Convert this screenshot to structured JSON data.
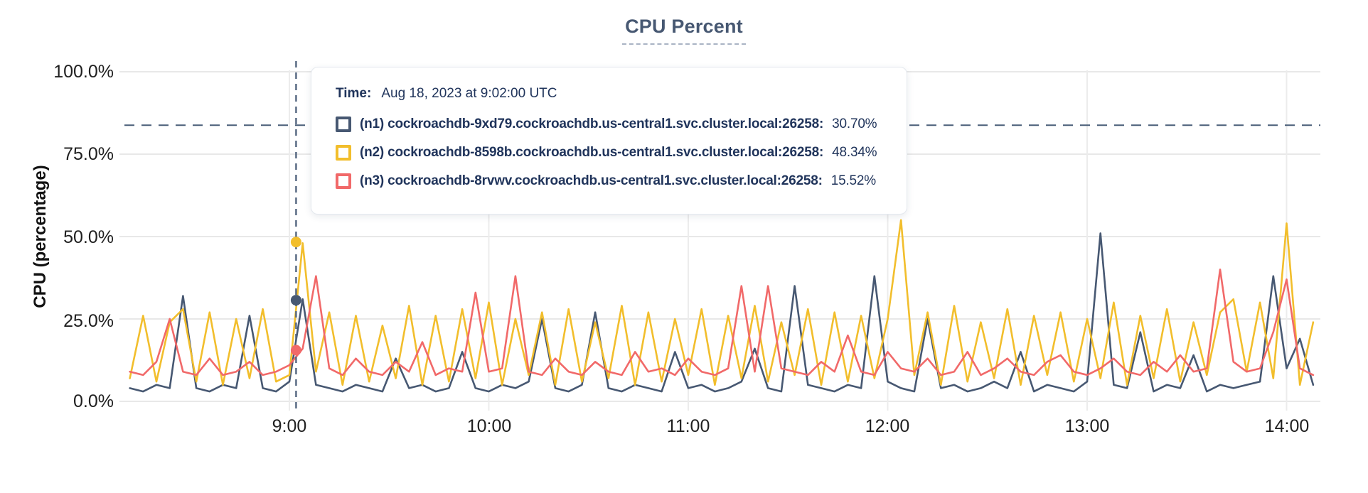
{
  "title": "CPU Percent",
  "tooltip": {
    "time_label": "Time:",
    "time_value": "Aug 18, 2023 at 9:02:00 UTC",
    "entries": [
      {
        "name": "(n1) cockroachdb-9xd79.cockroachdb.us-central1.svc.cluster.local:26258:",
        "value": "30.70%",
        "color": "#475872"
      },
      {
        "name": "(n2) cockroachdb-8598b.cockroachdb.us-central1.svc.cluster.local:26258:",
        "value": "48.34%",
        "color": "#F2BE2C"
      },
      {
        "name": "(n3) cockroachdb-8rvwv.cockroachdb.us-central1.svc.cluster.local:26258:",
        "value": "15.52%",
        "color": "#F16969"
      }
    ]
  },
  "chart_data": {
    "type": "line",
    "title": "CPU Percent",
    "xlabel": "",
    "ylabel": "CPU (percentage)",
    "ylim": [
      0,
      100
    ],
    "grid": true,
    "legend_position": "tooltip-overlay",
    "yticks": [
      {
        "label": "100.0%",
        "value": 100
      },
      {
        "label": "75.0%",
        "value": 75
      },
      {
        "label": "50.0%",
        "value": 50
      },
      {
        "label": "25.0%",
        "value": 25
      },
      {
        "label": "0.0%",
        "value": 0
      }
    ],
    "xticks": [
      {
        "label": "9:00",
        "minute": 540
      },
      {
        "label": "10:00",
        "minute": 600
      },
      {
        "label": "11:00",
        "minute": 660
      },
      {
        "label": "12:00",
        "minute": 720
      },
      {
        "label": "13:00",
        "minute": 780
      },
      {
        "label": "14:00",
        "minute": 840
      }
    ],
    "x_range_minutes": [
      490,
      850
    ],
    "x_start_minute": 492,
    "x_step_minutes": 4,
    "threshold_percent": 83.8,
    "hover": {
      "minute": 542,
      "time": "Aug 18, 2023 at 9:02:00 UTC",
      "values": [
        30.7,
        48.34,
        15.52
      ]
    },
    "series": [
      {
        "name": "(n1) cockroachdb-9xd79.cockroachdb.us-central1.svc.cluster.local:26258",
        "color": "#475872",
        "values": [
          4,
          3,
          5,
          4,
          32,
          4,
          3,
          5,
          4,
          26,
          4,
          3,
          6,
          31,
          5,
          4,
          3,
          5,
          4,
          3,
          13,
          4,
          5,
          3,
          4,
          15,
          4,
          3,
          5,
          4,
          6,
          25,
          4,
          3,
          5,
          27,
          4,
          3,
          5,
          4,
          3,
          15,
          4,
          5,
          3,
          4,
          6,
          16,
          4,
          3,
          35,
          5,
          4,
          3,
          5,
          4,
          38,
          6,
          4,
          3,
          25,
          4,
          5,
          3,
          4,
          6,
          4,
          15,
          3,
          5,
          4,
          3,
          6,
          51,
          5,
          4,
          21,
          3,
          5,
          4,
          14,
          3,
          5,
          4,
          5,
          6,
          38,
          10,
          19,
          5
        ]
      },
      {
        "name": "(n2) cockroachdb-8598b.cockroachdb.us-central1.svc.cluster.local:26258",
        "color": "#F2BE2C",
        "values": [
          7,
          26,
          6,
          24,
          28,
          6,
          27,
          5,
          25,
          7,
          28,
          6,
          8,
          48,
          9,
          27,
          5,
          26,
          6,
          23,
          7,
          29,
          5,
          26,
          6,
          28,
          7,
          30,
          5,
          25,
          8,
          27,
          5,
          28,
          6,
          24,
          7,
          29,
          5,
          27,
          6,
          25,
          8,
          28,
          5,
          26,
          7,
          29,
          6,
          24,
          8,
          28,
          5,
          27,
          6,
          26,
          7,
          25,
          55,
          8,
          27,
          5,
          29,
          6,
          24,
          7,
          28,
          5,
          26,
          8,
          27,
          6,
          25,
          7,
          30,
          5,
          26,
          7,
          28,
          6,
          24,
          8,
          27,
          31,
          9,
          30,
          7,
          54,
          5,
          24
        ]
      },
      {
        "name": "(n3) cockroachdb-8rvwv.cockroachdb.us-central1.svc.cluster.local:26258",
        "color": "#F16969",
        "values": [
          9,
          8,
          12,
          25,
          9,
          8,
          13,
          8,
          9,
          12,
          8,
          9,
          11,
          16,
          38,
          10,
          8,
          13,
          9,
          8,
          12,
          9,
          18,
          8,
          10,
          9,
          33,
          9,
          10,
          38,
          9,
          8,
          13,
          9,
          8,
          12,
          9,
          8,
          15,
          9,
          10,
          8,
          13,
          9,
          8,
          10,
          35,
          9,
          35,
          10,
          9,
          8,
          12,
          9,
          20,
          9,
          8,
          15,
          10,
          9,
          13,
          8,
          9,
          15,
          8,
          10,
          13,
          9,
          8,
          12,
          14,
          9,
          8,
          10,
          13,
          9,
          8,
          12,
          9,
          14,
          9,
          10,
          40,
          12,
          9,
          10,
          21,
          37,
          10,
          8
        ]
      }
    ]
  }
}
